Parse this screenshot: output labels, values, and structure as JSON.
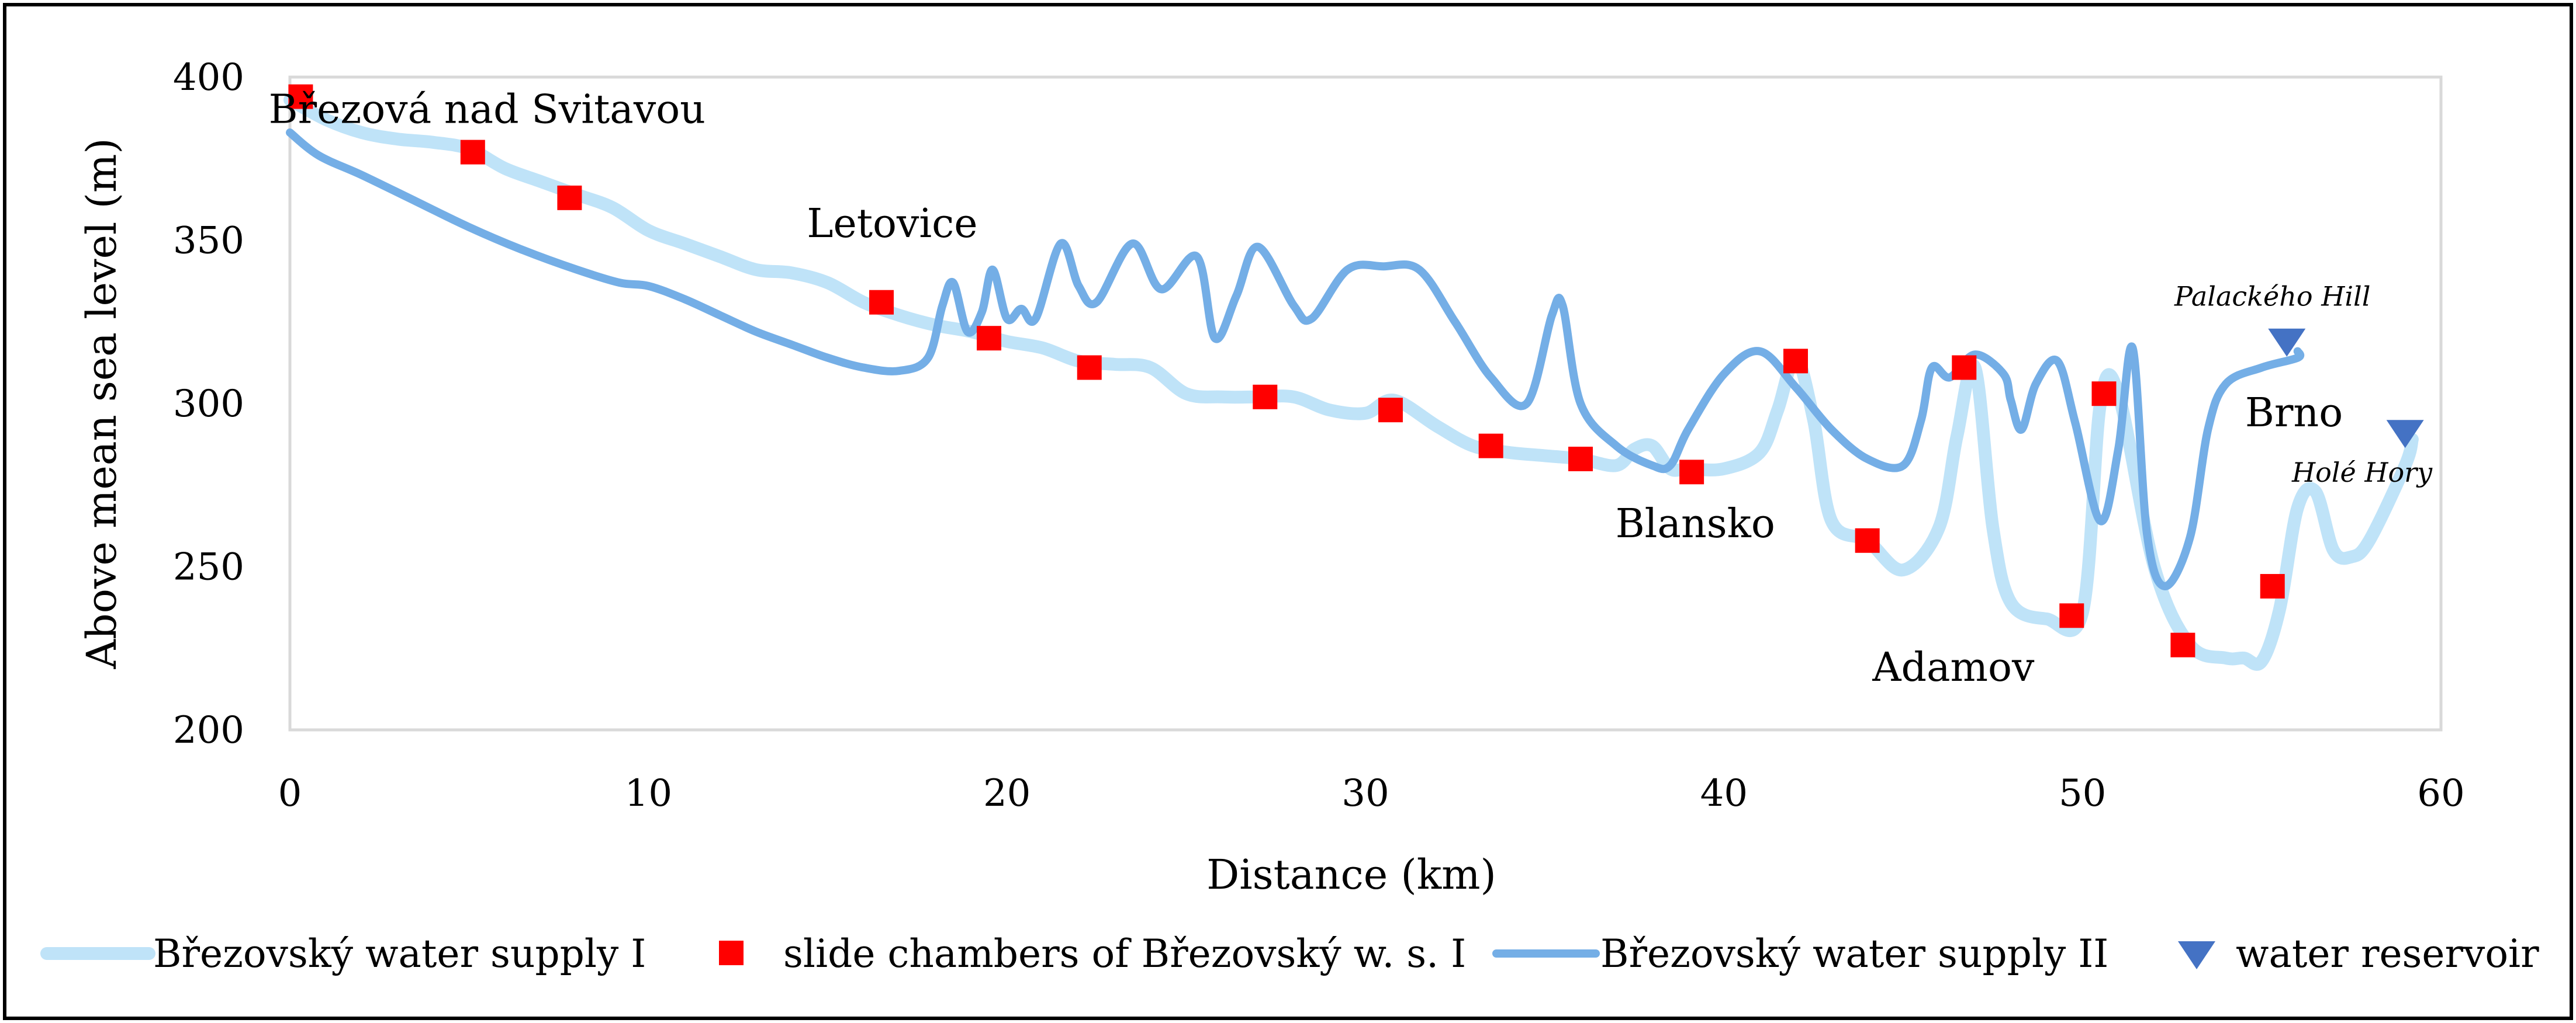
{
  "chart_data": {
    "type": "line",
    "title": "",
    "xlabel": "Distance (km)",
    "ylabel": "Above mean sea level (m)",
    "xlim": [
      0,
      60
    ],
    "ylim": [
      200,
      400
    ],
    "xticks": [
      0,
      10,
      20,
      30,
      40,
      50,
      60
    ],
    "yticks": [
      200,
      250,
      300,
      350,
      400
    ],
    "grid": false,
    "legend_position": "bottom",
    "series": [
      {
        "name": "Březovský water supply I",
        "type": "line",
        "color": "#bfe3f8",
        "points": [
          [
            0,
            393
          ],
          [
            1,
            387
          ],
          [
            2,
            383
          ],
          [
            3,
            381
          ],
          [
            4,
            380
          ],
          [
            5,
            378
          ],
          [
            6,
            372
          ],
          [
            7,
            368
          ],
          [
            8,
            364
          ],
          [
            9,
            360
          ],
          [
            10,
            353
          ],
          [
            11,
            349
          ],
          [
            12,
            345
          ],
          [
            13,
            341
          ],
          [
            14,
            340
          ],
          [
            15,
            337
          ],
          [
            16,
            331
          ],
          [
            17,
            327
          ],
          [
            18,
            324
          ],
          [
            19,
            322
          ],
          [
            20,
            319
          ],
          [
            21,
            317
          ],
          [
            22,
            313
          ],
          [
            23,
            312
          ],
          [
            24,
            311
          ],
          [
            25,
            303
          ],
          [
            26,
            302
          ],
          [
            27,
            302
          ],
          [
            28,
            302
          ],
          [
            29,
            298
          ],
          [
            30,
            297
          ],
          [
            30.8,
            301
          ],
          [
            32,
            293
          ],
          [
            33,
            287
          ],
          [
            34,
            285
          ],
          [
            35,
            284
          ],
          [
            36,
            283
          ],
          [
            37,
            281
          ],
          [
            37.5,
            286
          ],
          [
            38,
            287
          ],
          [
            38.5,
            280
          ],
          [
            39,
            280
          ],
          [
            40,
            280
          ],
          [
            41,
            285
          ],
          [
            41.5,
            298
          ],
          [
            42,
            314
          ],
          [
            42.5,
            295
          ],
          [
            43,
            264
          ],
          [
            44,
            258
          ],
          [
            45,
            249
          ],
          [
            46,
            262
          ],
          [
            46.5,
            290
          ],
          [
            47,
            311
          ],
          [
            47.5,
            262
          ],
          [
            48,
            239
          ],
          [
            49,
            234
          ],
          [
            50,
            236
          ],
          [
            50.5,
            300
          ],
          [
            51,
            303
          ],
          [
            52,
            250
          ],
          [
            53,
            226
          ],
          [
            54,
            222
          ],
          [
            54.5,
            222
          ],
          [
            55,
            221
          ],
          [
            55.5,
            237
          ],
          [
            56,
            268
          ],
          [
            56.5,
            273
          ],
          [
            57,
            255
          ],
          [
            57.5,
            253
          ],
          [
            58,
            258
          ],
          [
            59,
            281
          ],
          [
            59.2,
            289
          ]
        ]
      },
      {
        "name": "slide chambers of Březovský w. s. I",
        "type": "scatter",
        "color": "#ff0000",
        "points": [
          [
            0.3,
            394
          ],
          [
            5.1,
            377
          ],
          [
            7.8,
            363
          ],
          [
            16.5,
            331
          ],
          [
            19.5,
            320
          ],
          [
            22.3,
            311
          ],
          [
            27.2,
            302
          ],
          [
            30.7,
            298
          ],
          [
            33.5,
            287
          ],
          [
            36,
            283
          ],
          [
            39.1,
            279
          ],
          [
            42,
            313
          ],
          [
            44,
            258
          ],
          [
            46.7,
            311
          ],
          [
            49.7,
            235
          ],
          [
            50.6,
            303
          ],
          [
            52.8,
            226
          ],
          [
            55.3,
            244
          ]
        ]
      },
      {
        "name": "Březovský water supply II",
        "type": "line",
        "color": "#74aee6",
        "points": [
          [
            0,
            383
          ],
          [
            0.8,
            376
          ],
          [
            2,
            370
          ],
          [
            3.5,
            362
          ],
          [
            5,
            354
          ],
          [
            6.5,
            347
          ],
          [
            8,
            341
          ],
          [
            9.2,
            337
          ],
          [
            10,
            336
          ],
          [
            11,
            332
          ],
          [
            12,
            327
          ],
          [
            13,
            322
          ],
          [
            14,
            318
          ],
          [
            15,
            314
          ],
          [
            16,
            311
          ],
          [
            17,
            310
          ],
          [
            17.8,
            314
          ],
          [
            18.2,
            330
          ],
          [
            18.5,
            337
          ],
          [
            18.9,
            322
          ],
          [
            19.3,
            328
          ],
          [
            19.6,
            341
          ],
          [
            20,
            326
          ],
          [
            20.4,
            329
          ],
          [
            20.8,
            326
          ],
          [
            21.5,
            349
          ],
          [
            22,
            336
          ],
          [
            22.5,
            331
          ],
          [
            23.5,
            349
          ],
          [
            24.3,
            335
          ],
          [
            25.3,
            345
          ],
          [
            25.8,
            320
          ],
          [
            26.4,
            333
          ],
          [
            27,
            348
          ],
          [
            28,
            330
          ],
          [
            28.5,
            326
          ],
          [
            29.5,
            341
          ],
          [
            30.5,
            342
          ],
          [
            31.5,
            341
          ],
          [
            32.5,
            325
          ],
          [
            33.5,
            308
          ],
          [
            34.5,
            300
          ],
          [
            35.2,
            327
          ],
          [
            35.5,
            330
          ],
          [
            36,
            300
          ],
          [
            37,
            287
          ],
          [
            38,
            281
          ],
          [
            38.5,
            281
          ],
          [
            39,
            292
          ],
          [
            40,
            309
          ],
          [
            41,
            316
          ],
          [
            42,
            305
          ],
          [
            43,
            292
          ],
          [
            44,
            283
          ],
          [
            45,
            281
          ],
          [
            45.5,
            295
          ],
          [
            45.8,
            311
          ],
          [
            46.3,
            308
          ],
          [
            47,
            315
          ],
          [
            47.8,
            309
          ],
          [
            48,
            301
          ],
          [
            48.3,
            292
          ],
          [
            48.7,
            306
          ],
          [
            49.3,
            313
          ],
          [
            49.8,
            294
          ],
          [
            50.5,
            264
          ],
          [
            51,
            286
          ],
          [
            51.4,
            317
          ],
          [
            51.8,
            260
          ],
          [
            52.3,
            244
          ],
          [
            53,
            259
          ],
          [
            53.5,
            292
          ],
          [
            54,
            306
          ],
          [
            55,
            311
          ],
          [
            56,
            314
          ],
          [
            56,
            316
          ]
        ]
      },
      {
        "name": "water reservoir",
        "type": "scatter",
        "color": "#4472c4",
        "points": [
          [
            55.7,
            319
          ],
          [
            59,
            291
          ]
        ]
      }
    ],
    "annotations": [
      {
        "text": "Březová nad Svitavou",
        "x": 5.5,
        "y": 386,
        "style": "normal"
      },
      {
        "text": "Letovice",
        "x": 16.8,
        "y": 351,
        "style": "normal"
      },
      {
        "text": "Blansko",
        "x": 39.2,
        "y": 259,
        "style": "normal"
      },
      {
        "text": "Adamov",
        "x": 46.4,
        "y": 215,
        "style": "normal"
      },
      {
        "text": "Brno",
        "x": 55.9,
        "y": 293,
        "style": "normal"
      },
      {
        "text": "Palackého Hill",
        "x": 55.3,
        "y": 330,
        "style": "italic"
      },
      {
        "text": "Holé Hory",
        "x": 57.8,
        "y": 276,
        "style": "italic"
      }
    ]
  }
}
